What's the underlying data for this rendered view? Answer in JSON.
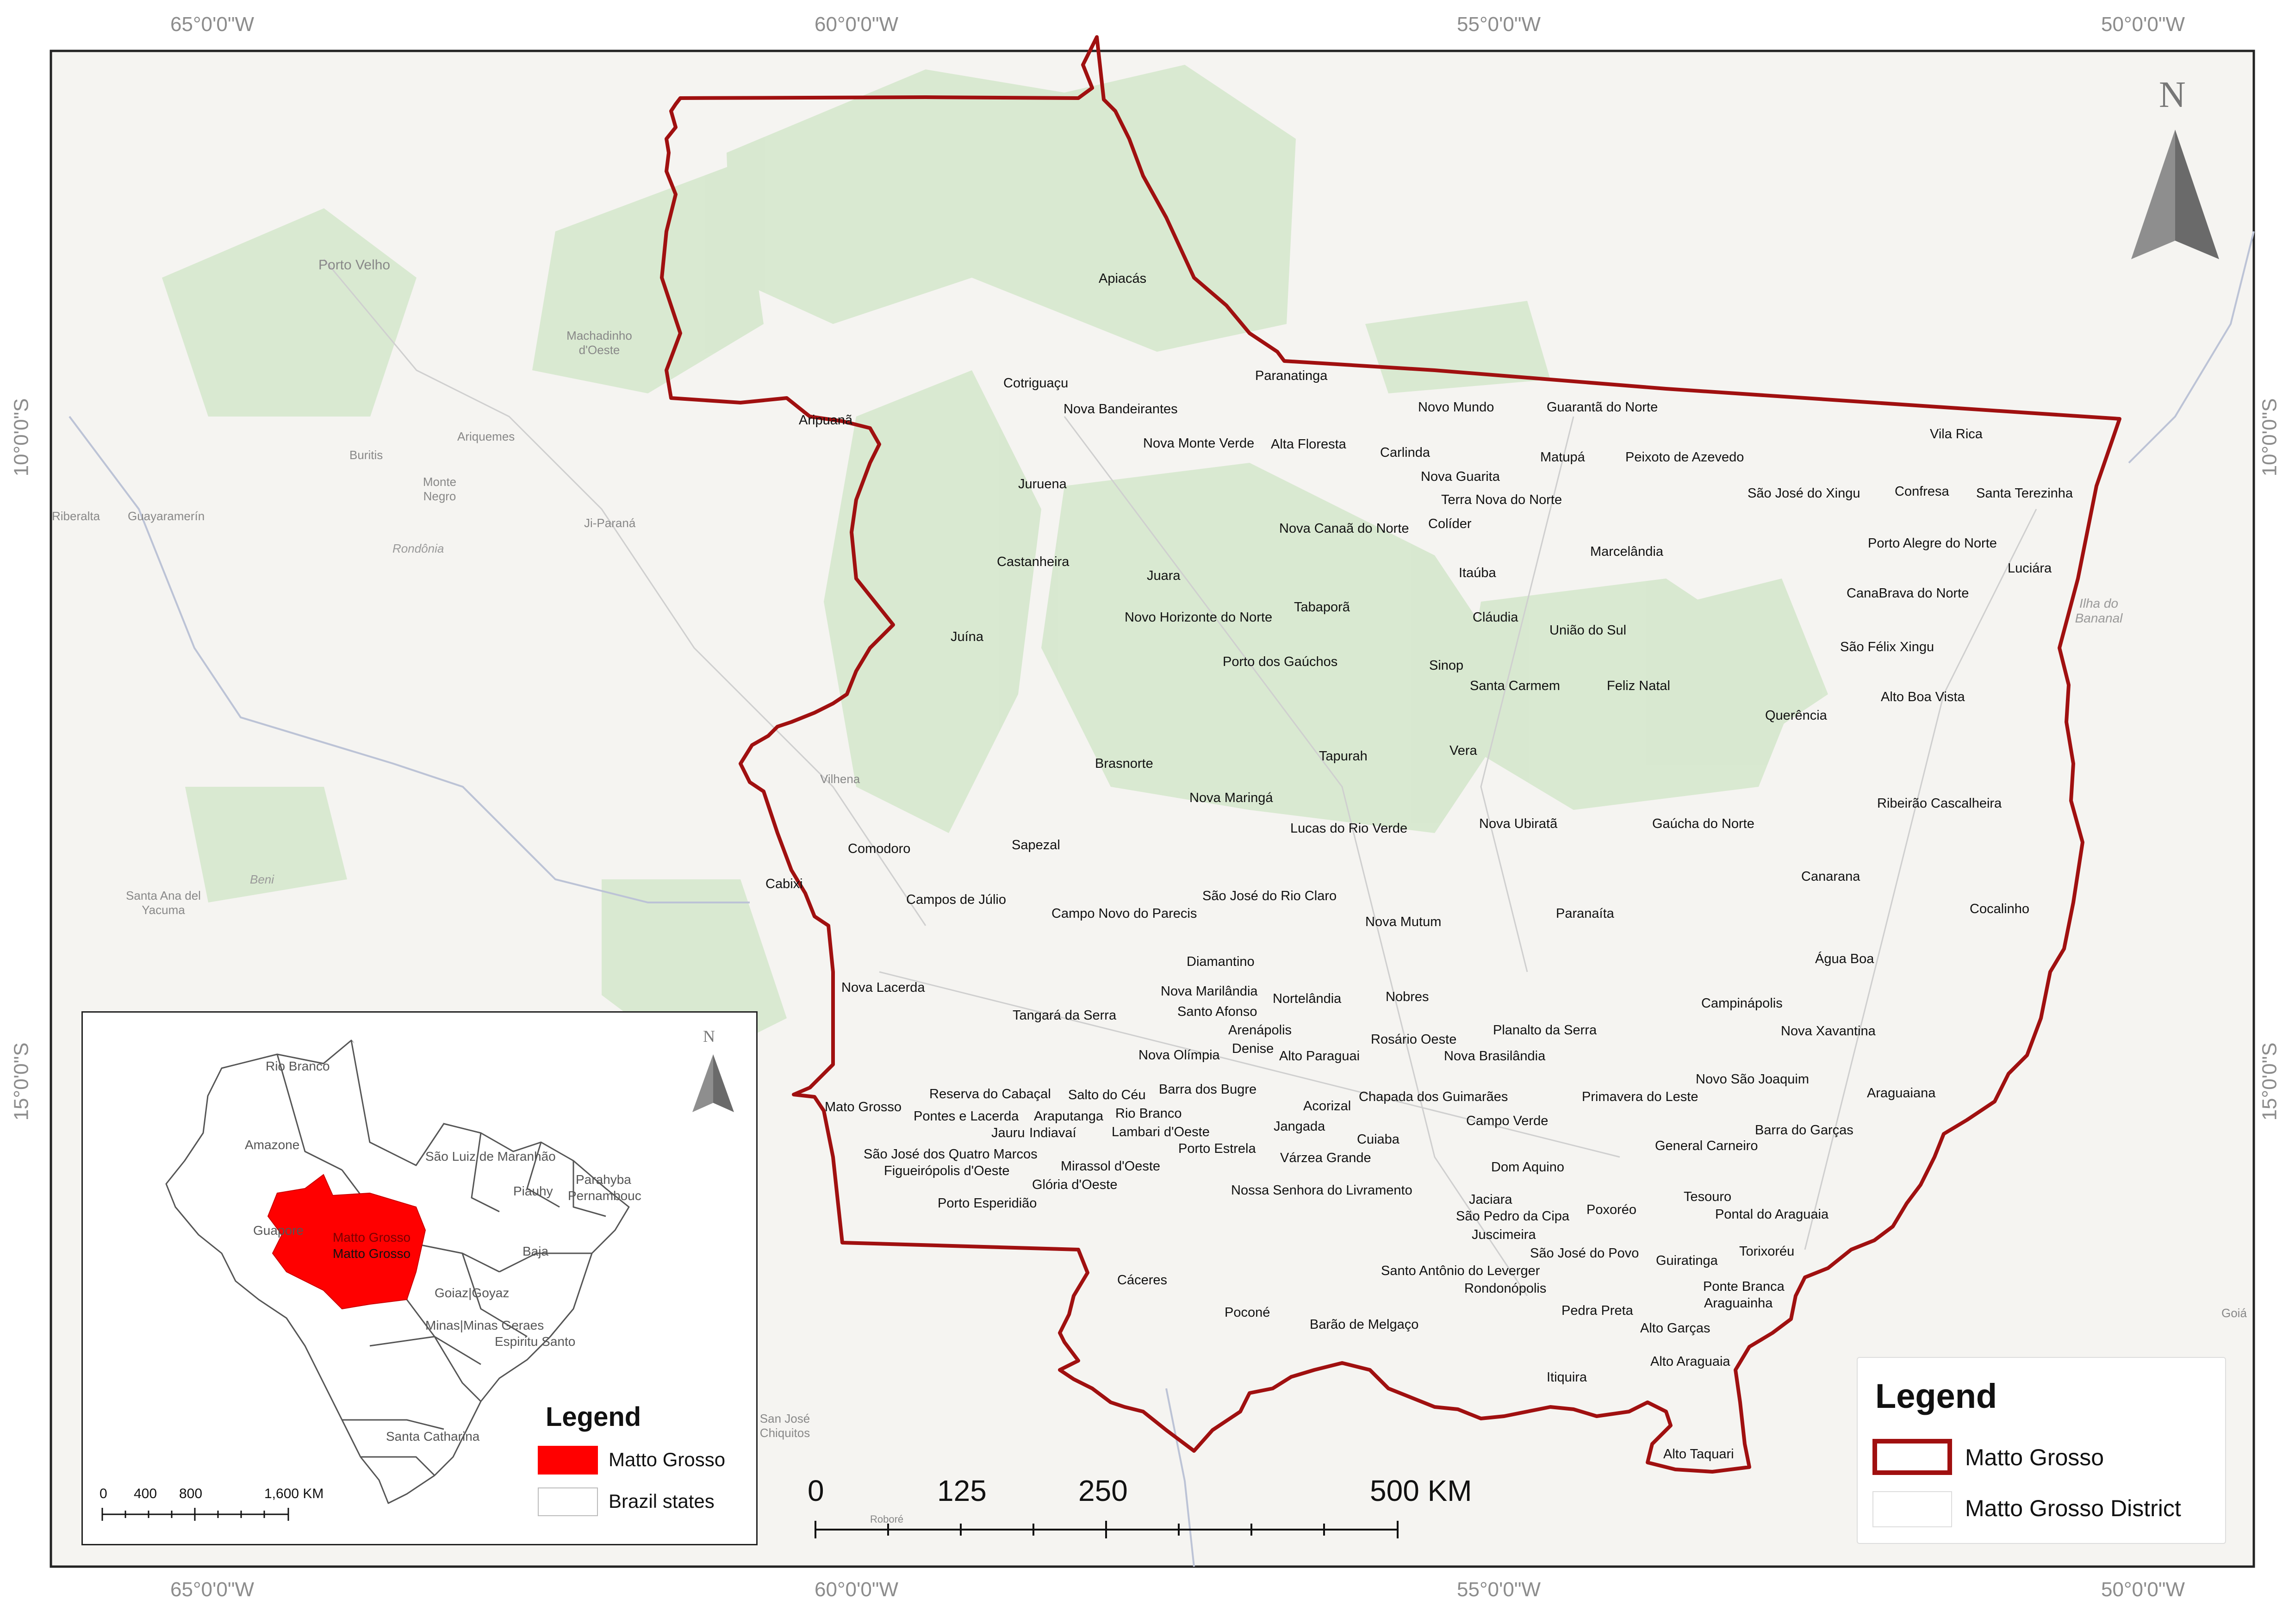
{
  "graticule": {
    "top": [
      "65°0'0\"W",
      "60°0'0\"W",
      "55°0'0\"W",
      "50°0'0\"W"
    ],
    "bottom": [
      "65°0'0\"W",
      "60°0'0\"W",
      "55°0'0\"W",
      "50°0'0\"W"
    ],
    "left": [
      "10°0'0\"S",
      "15°0'0\"S"
    ],
    "right": [
      "10°0'0\"S",
      "15°0'0\"S"
    ]
  },
  "north_arrow": {
    "label": "N"
  },
  "background_labels": [
    "Porto Velho",
    "Machadinho d'Oeste",
    "Ariquemes",
    "Buritis",
    "Monte Negro",
    "Rondônia",
    "Riberalta",
    "Guayaramerín",
    "Ji-Paraná",
    "Vilhena",
    "Beni",
    "Santa Ana del Yacuma",
    "Ilha do Bananal",
    "Goiá",
    "San José Chiquitos",
    "Roboré"
  ],
  "municipalities": [
    "Apiacás",
    "Paranatinga",
    "Cotriguaçu",
    "Aripuanã",
    "Nova Bandeirantes",
    "Novo Mundo",
    "Guarantã do Norte",
    "Nova Monte Verde",
    "Alta Floresta",
    "Carlinda",
    "Matupá",
    "Peixoto de Azevedo",
    "Vila Rica",
    "Juruena",
    "Nova Guarita",
    "Terra Nova do Norte",
    "São José do Xingu",
    "Confresa",
    "Santa Terezinha",
    "Nova Canaã do Norte",
    "Colíder",
    "Castanheira",
    "Marcelândia",
    "Porto Alegre do Norte",
    "Juara",
    "Itaúba",
    "Luciára",
    "Tabaporã",
    "Novo Horizonte do Norte",
    "CanaBrava do Norte",
    "Cláudia",
    "Juína",
    "União do Sul",
    "São Félix Xingu",
    "Porto dos Gaúchos",
    "Sinop",
    "Santa Carmem",
    "Feliz Natal",
    "Alto Boa Vista",
    "Querência",
    "Tapurah",
    "Vera",
    "Brasnorte",
    "Nova Maringá",
    "Ribeirão Cascalheira",
    "Lucas do Rio Verde",
    "Nova Ubiratã",
    "Gaúcha do Norte",
    "Comodoro",
    "Sapezal",
    "Canarana",
    "Cabixi",
    "Campos de Júlio",
    "São José do Rio Claro",
    "Campo Novo do Parecis",
    "Paranaíta",
    "Cocalinho",
    "Nova Mutum",
    "Diamantino",
    "Água Boa",
    "Nova Lacerda",
    "Nova Marilândia",
    "Nortelândia",
    "Nobres",
    "Campinápolis",
    "Santo Afonso",
    "Arenápolis",
    "Tangará da Serra",
    "Planalto da Serra",
    "Nova Xavantina",
    "Denise",
    "Rosário Oeste",
    "Nova Olímpia",
    "Alto Paraguai",
    "Nova Brasilândia",
    "Novo São Joaquim",
    "Barra dos Bugre",
    "Reserva do Cabaçal",
    "Salto do Céu",
    "Chapada dos Guimarães",
    "Primavera do Leste",
    "Araguaiana",
    "Mato Grosso",
    "Acorizal",
    "Pontes e Lacerda",
    "Araputanga",
    "Rio Branco",
    "Campo Verde",
    "Barra do Garças",
    "Jauru",
    "Indiavaí",
    "Lambari d'Oeste",
    "Jangada",
    "Cuiaba",
    "General Carneiro",
    "São José dos Quatro Marcos",
    "Porto Estrela",
    "Várzea Grande",
    "Figueirópolis d'Oeste",
    "Mirassol d'Oeste",
    "Dom Aquino",
    "Glória d'Oeste",
    "Nossa Senhora do Livramento",
    "Tesouro",
    "Porto Esperidião",
    "Jaciara",
    "Poxoréo",
    "Pontal do Araguaia",
    "São Pedro da Cipa",
    "Juscimeira",
    "São José do Povo",
    "Torixoréu",
    "Guiratinga",
    "Santo Antônio do Leverger",
    "Cáceres",
    "Rondonópolis",
    "Ponte Branca",
    "Araguainha",
    "Poconé",
    "Pedra Preta",
    "Barão de Melgaço",
    "Alto Garças",
    "Itiquira",
    "Alto Araguaia",
    "Alto Taquari"
  ],
  "inset": {
    "north_label": "N",
    "region_labels": [
      "Rio Branco",
      "Amazone",
      "São Luiz de Maranhão",
      "Piauhy",
      "Parahyba",
      "Pernambouc",
      "Guapore",
      "Matto Grosso",
      "Matto Grosso",
      "Baja",
      "Goiaz|Goyaz",
      "Minas|Minas Geraes",
      "Espiritu Santo",
      "Santa Catharina"
    ],
    "legend_title": "Legend",
    "legend_items": [
      "Matto Grosso",
      "Brazil  states"
    ],
    "scale_labels": [
      "0",
      "400",
      "800",
      "1,600 KM"
    ],
    "colors": {
      "highlight": "#ff0000",
      "outline": "#666666"
    }
  },
  "scale_bar": {
    "labels": [
      "0",
      "125",
      "250",
      "500 KM"
    ]
  },
  "legend": {
    "title": "Legend",
    "items": [
      "Matto Grosso",
      "Matto Grosso District"
    ],
    "colors": {
      "boundary": "#a01010",
      "district": "#dddddd"
    }
  }
}
